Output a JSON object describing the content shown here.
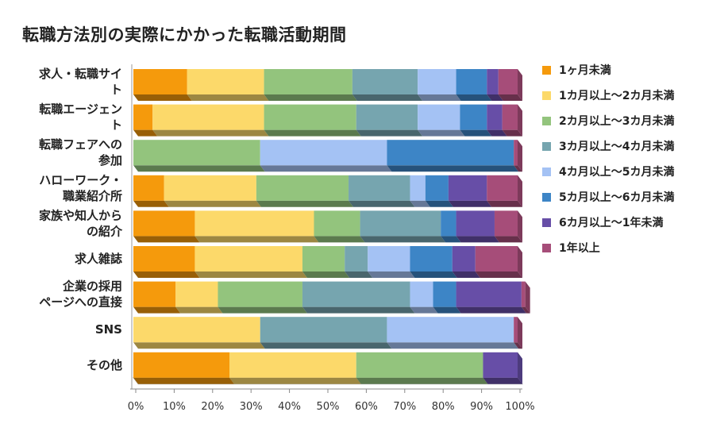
{
  "chart_data": {
    "type": "bar",
    "orientation": "horizontal",
    "stacked": "percent",
    "title": "転職方法別の実際にかかった転職活動期間",
    "categories": [
      [
        "求人・転職サイ",
        "ト"
      ],
      [
        "転職エージェン",
        "ト"
      ],
      [
        "転職フェアへの",
        "参加"
      ],
      [
        "ハローワーク・",
        "職業紹介所"
      ],
      [
        "家族や知人から",
        "の紹介"
      ],
      [
        "求人雑誌"
      ],
      [
        "企業の採用",
        "ページへの直接"
      ],
      [
        "SNS"
      ],
      [
        "その他"
      ]
    ],
    "series": [
      {
        "name": "1ヶ月未満",
        "color": "#f59a0c",
        "values": [
          14,
          5,
          0,
          8,
          16,
          16,
          11,
          0,
          25
        ]
      },
      {
        "name": "1カ月以上～2カ月未満",
        "color": "#fcd96a",
        "values": [
          20,
          29,
          0,
          24,
          31,
          28,
          11,
          33,
          33
        ]
      },
      {
        "name": "2カ月以上～3カ月未満",
        "color": "#93c47d",
        "values": [
          23,
          24,
          33,
          24,
          12,
          11,
          22,
          0,
          33
        ]
      },
      {
        "name": "3カ月以上～4カ月未満",
        "color": "#76a5af",
        "values": [
          17,
          16,
          0,
          16,
          21,
          6,
          28,
          33,
          0
        ]
      },
      {
        "name": "4カ月以上～5カ月未満",
        "color": "#a4c2f4",
        "values": [
          10,
          11,
          33,
          4,
          0,
          11,
          6,
          33,
          0
        ]
      },
      {
        "name": "5カ月以上～6カ月未満",
        "color": "#3d85c6",
        "values": [
          8,
          7,
          33,
          6,
          4,
          11,
          6,
          0,
          0
        ]
      },
      {
        "name": "6カ月以上～1年未満",
        "color": "#674ea7",
        "values": [
          3,
          4,
          0,
          10,
          10,
          6,
          17,
          0,
          9
        ]
      },
      {
        "name": "1年以上",
        "color": "#a64d79",
        "values": [
          5,
          4,
          1,
          8,
          6,
          11,
          1,
          1,
          0
        ]
      }
    ],
    "xlim": [
      0,
      100
    ],
    "x_ticks": [
      "0%",
      "10%",
      "20%",
      "30%",
      "40%",
      "50%",
      "60%",
      "70%",
      "80%",
      "90%",
      "100%"
    ],
    "legend_position": "right"
  }
}
